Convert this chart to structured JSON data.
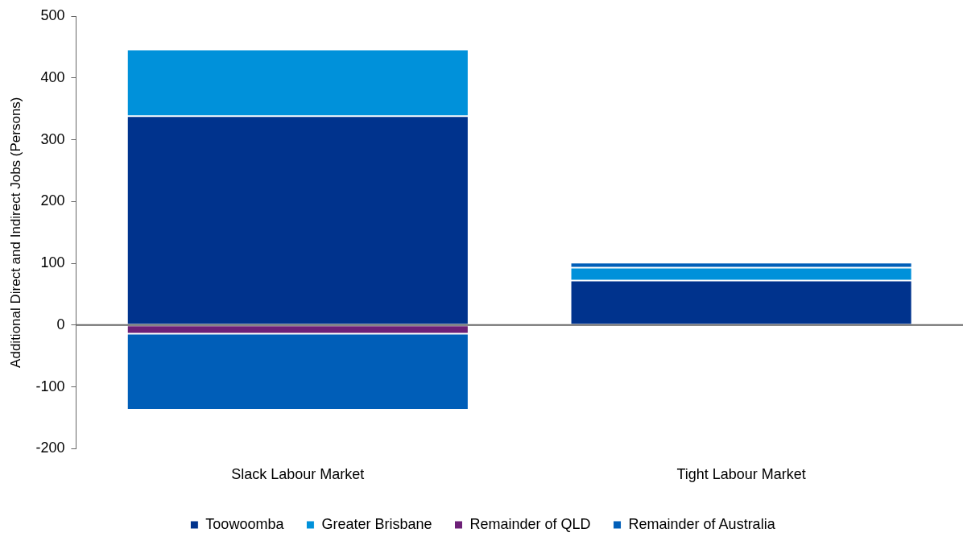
{
  "chart_data": {
    "type": "bar",
    "stacked": true,
    "ylabel": "Additional Direct and Indirect Jobs (Persons)",
    "categories": [
      "Slack Labour Market",
      "Tight Labour Market"
    ],
    "series": [
      {
        "name": "Toowoomba",
        "color": "#00338d",
        "values": [
          338,
          72
        ]
      },
      {
        "name": "Greater Brisbane",
        "color": "#0091da",
        "values": [
          108,
          21
        ]
      },
      {
        "name": "Remainder of QLD",
        "color": "#6d2077",
        "values": [
          -14,
          null
        ]
      },
      {
        "name": "Remainder of Australia",
        "color": "#005eb8",
        "values": [
          -123,
          8
        ]
      }
    ],
    "ylim": [
      -200,
      500
    ],
    "yticks": [
      -200,
      -100,
      0,
      100,
      200,
      300,
      400,
      500
    ],
    "ref_lines": [
      {
        "axis": "y",
        "value": 0,
        "color": "#666666"
      }
    ],
    "grid": false,
    "legend": "bottom"
  }
}
